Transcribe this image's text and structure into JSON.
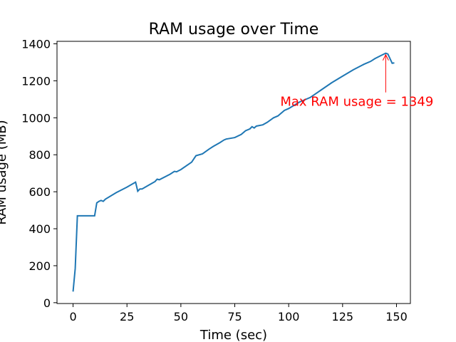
{
  "chart_data": {
    "type": "line",
    "title": "RAM usage over Time",
    "xlabel": "Time (sec)",
    "ylabel": "RAM usage (MB)",
    "x": [
      0,
      1,
      2,
      3,
      10,
      11,
      12,
      13,
      14,
      15,
      20,
      25,
      29,
      30,
      31,
      32,
      35,
      38,
      39,
      40,
      45,
      47,
      48,
      50,
      55,
      57,
      60,
      63,
      65,
      68,
      70,
      71,
      75,
      78,
      80,
      82,
      83,
      84,
      85,
      88,
      90,
      92,
      93,
      95,
      98,
      100,
      105,
      110,
      115,
      120,
      125,
      130,
      135,
      138,
      140,
      143,
      145,
      146,
      148,
      149
    ],
    "series": [
      {
        "color": "#1f77b4",
        "values": [
          60,
          185,
          470,
          470,
          470,
          540,
          548,
          553,
          548,
          560,
          595,
          625,
          652,
          603,
          615,
          615,
          635,
          655,
          668,
          665,
          695,
          710,
          708,
          720,
          760,
          795,
          805,
          830,
          845,
          865,
          880,
          885,
          893,
          910,
          930,
          940,
          952,
          945,
          955,
          962,
          975,
          992,
          1000,
          1010,
          1040,
          1050,
          1085,
          1110,
          1150,
          1190,
          1225,
          1260,
          1290,
          1305,
          1320,
          1338,
          1349,
          1345,
          1295,
          1297
        ]
      }
    ],
    "xlim": [
      -7.45,
      156.45
    ],
    "ylim": [
      -4.5,
      1413.5
    ],
    "xticks": [
      0,
      25,
      50,
      75,
      100,
      125,
      150
    ],
    "yticks": [
      0,
      200,
      400,
      600,
      800,
      1000,
      1200,
      1400
    ],
    "annotation": {
      "text": "Max RAM usage = 1349",
      "x": 145,
      "y": 1349,
      "color": "red"
    }
  }
}
